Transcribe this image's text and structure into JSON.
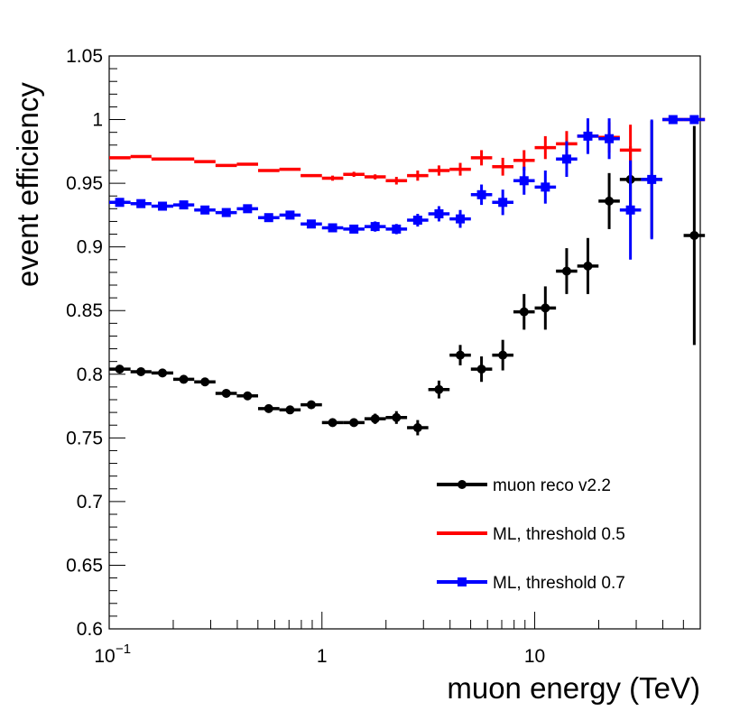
{
  "chart_data": {
    "type": "scatter",
    "title": "",
    "xlabel": "muon energy (TeV)",
    "ylabel": "event efficiency",
    "xscale": "log",
    "xlim": [
      0.1,
      60
    ],
    "ylim": [
      0.6,
      1.05
    ],
    "x_tick_labels": [
      {
        "value": 0.1,
        "base": "10",
        "exp": "−1"
      },
      {
        "value": 1,
        "text": "1"
      },
      {
        "value": 10,
        "text": "10"
      }
    ],
    "y_ticks": [
      0.6,
      0.65,
      0.7,
      0.75,
      0.8,
      0.85,
      0.9,
      0.95,
      1.0,
      1.05
    ],
    "y_tick_labels": [
      "0.6",
      "0.65",
      "0.7",
      "0.75",
      "0.8",
      "0.85",
      "0.9",
      "0.95",
      "1",
      "1.05"
    ],
    "legend_position": "bottom-right",
    "series": [
      {
        "name": "muon reco v2.2",
        "color": "#000000",
        "marker": "circle",
        "points": [
          {
            "x": 0.112,
            "y": 0.804,
            "xlo": 0.1,
            "xhi": 0.126,
            "err": 0.0015
          },
          {
            "x": 0.141,
            "y": 0.802,
            "xlo": 0.126,
            "xhi": 0.158,
            "err": 0.0015
          },
          {
            "x": 0.178,
            "y": 0.801,
            "xlo": 0.158,
            "xhi": 0.2,
            "err": 0.0015
          },
          {
            "x": 0.224,
            "y": 0.796,
            "xlo": 0.2,
            "xhi": 0.251,
            "err": 0.0015
          },
          {
            "x": 0.282,
            "y": 0.794,
            "xlo": 0.251,
            "xhi": 0.316,
            "err": 0.0015
          },
          {
            "x": 0.355,
            "y": 0.785,
            "xlo": 0.316,
            "xhi": 0.398,
            "err": 0.0015
          },
          {
            "x": 0.447,
            "y": 0.783,
            "xlo": 0.398,
            "xhi": 0.501,
            "err": 0.0015
          },
          {
            "x": 0.562,
            "y": 0.773,
            "xlo": 0.501,
            "xhi": 0.631,
            "err": 0.002
          },
          {
            "x": 0.708,
            "y": 0.772,
            "xlo": 0.631,
            "xhi": 0.794,
            "err": 0.002
          },
          {
            "x": 0.891,
            "y": 0.776,
            "xlo": 0.794,
            "xhi": 1.0,
            "err": 0.002
          },
          {
            "x": 1.122,
            "y": 0.762,
            "xlo": 1.0,
            "xhi": 1.259,
            "err": 0.003
          },
          {
            "x": 1.413,
            "y": 0.762,
            "xlo": 1.259,
            "xhi": 1.585,
            "err": 0.003
          },
          {
            "x": 1.778,
            "y": 0.765,
            "xlo": 1.585,
            "xhi": 1.995,
            "err": 0.004
          },
          {
            "x": 2.239,
            "y": 0.766,
            "xlo": 1.995,
            "xhi": 2.512,
            "err": 0.005
          },
          {
            "x": 2.818,
            "y": 0.758,
            "xlo": 2.512,
            "xhi": 3.162,
            "err": 0.006
          },
          {
            "x": 3.548,
            "y": 0.788,
            "xlo": 3.162,
            "xhi": 3.981,
            "err": 0.007
          },
          {
            "x": 4.467,
            "y": 0.815,
            "xlo": 3.981,
            "xhi": 5.012,
            "err": 0.008
          },
          {
            "x": 5.623,
            "y": 0.804,
            "xlo": 5.012,
            "xhi": 6.31,
            "err": 0.01
          },
          {
            "x": 7.079,
            "y": 0.815,
            "xlo": 6.31,
            "xhi": 7.943,
            "err": 0.012
          },
          {
            "x": 8.913,
            "y": 0.849,
            "xlo": 7.943,
            "xhi": 10.0,
            "err": 0.014
          },
          {
            "x": 11.22,
            "y": 0.852,
            "xlo": 10.0,
            "xhi": 12.59,
            "err": 0.017
          },
          {
            "x": 14.13,
            "y": 0.881,
            "xlo": 12.59,
            "xhi": 15.85,
            "err": 0.018
          },
          {
            "x": 17.78,
            "y": 0.885,
            "xlo": 15.85,
            "xhi": 19.95,
            "err": 0.022
          },
          {
            "x": 22.39,
            "y": 0.936,
            "xlo": 19.95,
            "xhi": 25.12,
            "err": 0.022
          },
          {
            "x": 28.18,
            "y": 0.953,
            "xlo": 25.12,
            "xhi": 31.62,
            "err": 0.026
          },
          {
            "x": 35.48,
            "y": 0.953,
            "xlo": 31.62,
            "xhi": 39.81,
            "err": 0.046
          },
          {
            "x": 56.23,
            "y": 0.909,
            "xlo": 50.12,
            "xhi": 63.1,
            "err": 0.086
          }
        ]
      },
      {
        "name": "ML, threshold 0.5",
        "color": "#ff0000",
        "marker": "none",
        "points": [
          {
            "x": 0.112,
            "y": 0.97,
            "xlo": 0.1,
            "xhi": 0.126,
            "err": 0.0
          },
          {
            "x": 0.141,
            "y": 0.971,
            "xlo": 0.126,
            "xhi": 0.158,
            "err": 0.0
          },
          {
            "x": 0.178,
            "y": 0.969,
            "xlo": 0.158,
            "xhi": 0.2,
            "err": 0.0
          },
          {
            "x": 0.224,
            "y": 0.969,
            "xlo": 0.2,
            "xhi": 0.251,
            "err": 0.0
          },
          {
            "x": 0.282,
            "y": 0.967,
            "xlo": 0.251,
            "xhi": 0.316,
            "err": 0.0
          },
          {
            "x": 0.355,
            "y": 0.964,
            "xlo": 0.316,
            "xhi": 0.398,
            "err": 0.0
          },
          {
            "x": 0.447,
            "y": 0.965,
            "xlo": 0.398,
            "xhi": 0.501,
            "err": 0.0
          },
          {
            "x": 0.562,
            "y": 0.96,
            "xlo": 0.501,
            "xhi": 0.631,
            "err": 0.001
          },
          {
            "x": 0.708,
            "y": 0.961,
            "xlo": 0.631,
            "xhi": 0.794,
            "err": 0.001
          },
          {
            "x": 0.891,
            "y": 0.956,
            "xlo": 0.794,
            "xhi": 1.0,
            "err": 0.001
          },
          {
            "x": 1.122,
            "y": 0.954,
            "xlo": 1.0,
            "xhi": 1.259,
            "err": 0.002
          },
          {
            "x": 1.413,
            "y": 0.957,
            "xlo": 1.259,
            "xhi": 1.585,
            "err": 0.002
          },
          {
            "x": 1.778,
            "y": 0.955,
            "xlo": 1.585,
            "xhi": 1.995,
            "err": 0.002
          },
          {
            "x": 2.239,
            "y": 0.952,
            "xlo": 1.995,
            "xhi": 2.512,
            "err": 0.003
          },
          {
            "x": 2.818,
            "y": 0.956,
            "xlo": 2.512,
            "xhi": 3.162,
            "err": 0.004
          },
          {
            "x": 3.548,
            "y": 0.96,
            "xlo": 3.162,
            "xhi": 3.981,
            "err": 0.004
          },
          {
            "x": 4.467,
            "y": 0.961,
            "xlo": 3.981,
            "xhi": 5.012,
            "err": 0.005
          },
          {
            "x": 5.623,
            "y": 0.97,
            "xlo": 5.012,
            "xhi": 6.31,
            "err": 0.006
          },
          {
            "x": 7.079,
            "y": 0.963,
            "xlo": 6.31,
            "xhi": 7.943,
            "err": 0.007
          },
          {
            "x": 8.913,
            "y": 0.968,
            "xlo": 7.943,
            "xhi": 10.0,
            "err": 0.008
          },
          {
            "x": 11.22,
            "y": 0.978,
            "xlo": 10.0,
            "xhi": 12.59,
            "err": 0.009
          },
          {
            "x": 14.13,
            "y": 0.981,
            "xlo": 12.59,
            "xhi": 15.85,
            "err": 0.01
          },
          {
            "x": 17.78,
            "y": 0.987,
            "xlo": 15.85,
            "xhi": 19.95,
            "err": 0.011
          },
          {
            "x": 22.39,
            "y": 0.986,
            "xlo": 19.95,
            "xhi": 25.12,
            "err": 0.012
          },
          {
            "x": 28.18,
            "y": 0.976,
            "xlo": 25.12,
            "xhi": 31.62,
            "err": 0.02
          },
          {
            "x": 44.67,
            "y": 1.0,
            "xlo": 39.81,
            "xhi": 50.12,
            "err": 0.0
          },
          {
            "x": 56.23,
            "y": 1.0,
            "xlo": 50.12,
            "xhi": 63.1,
            "err": 0.0
          }
        ]
      },
      {
        "name": "ML, threshold 0.7",
        "color": "#0000ff",
        "marker": "square",
        "points": [
          {
            "x": 0.112,
            "y": 0.935,
            "xlo": 0.1,
            "xhi": 0.126,
            "err": 0.001
          },
          {
            "x": 0.141,
            "y": 0.934,
            "xlo": 0.126,
            "xhi": 0.158,
            "err": 0.001
          },
          {
            "x": 0.178,
            "y": 0.932,
            "xlo": 0.158,
            "xhi": 0.2,
            "err": 0.001
          },
          {
            "x": 0.224,
            "y": 0.933,
            "xlo": 0.2,
            "xhi": 0.251,
            "err": 0.001
          },
          {
            "x": 0.282,
            "y": 0.929,
            "xlo": 0.251,
            "xhi": 0.316,
            "err": 0.001
          },
          {
            "x": 0.355,
            "y": 0.927,
            "xlo": 0.316,
            "xhi": 0.398,
            "err": 0.001
          },
          {
            "x": 0.447,
            "y": 0.93,
            "xlo": 0.398,
            "xhi": 0.501,
            "err": 0.001
          },
          {
            "x": 0.562,
            "y": 0.923,
            "xlo": 0.501,
            "xhi": 0.631,
            "err": 0.002
          },
          {
            "x": 0.708,
            "y": 0.925,
            "xlo": 0.631,
            "xhi": 0.794,
            "err": 0.002
          },
          {
            "x": 0.891,
            "y": 0.918,
            "xlo": 0.794,
            "xhi": 1.0,
            "err": 0.002
          },
          {
            "x": 1.122,
            "y": 0.915,
            "xlo": 1.0,
            "xhi": 1.259,
            "err": 0.003
          },
          {
            "x": 1.413,
            "y": 0.914,
            "xlo": 1.259,
            "xhi": 1.585,
            "err": 0.003
          },
          {
            "x": 1.778,
            "y": 0.916,
            "xlo": 1.585,
            "xhi": 1.995,
            "err": 0.004
          },
          {
            "x": 2.239,
            "y": 0.914,
            "xlo": 1.995,
            "xhi": 2.512,
            "err": 0.004
          },
          {
            "x": 2.818,
            "y": 0.921,
            "xlo": 2.512,
            "xhi": 3.162,
            "err": 0.005
          },
          {
            "x": 3.548,
            "y": 0.926,
            "xlo": 3.162,
            "xhi": 3.981,
            "err": 0.006
          },
          {
            "x": 4.467,
            "y": 0.922,
            "xlo": 3.981,
            "xhi": 5.012,
            "err": 0.007
          },
          {
            "x": 5.623,
            "y": 0.941,
            "xlo": 5.012,
            "xhi": 6.31,
            "err": 0.008
          },
          {
            "x": 7.079,
            "y": 0.935,
            "xlo": 6.31,
            "xhi": 7.943,
            "err": 0.01
          },
          {
            "x": 8.913,
            "y": 0.952,
            "xlo": 7.943,
            "xhi": 10.0,
            "err": 0.011
          },
          {
            "x": 11.22,
            "y": 0.947,
            "xlo": 10.0,
            "xhi": 12.59,
            "err": 0.013
          },
          {
            "x": 14.13,
            "y": 0.969,
            "xlo": 12.59,
            "xhi": 15.85,
            "err": 0.014
          },
          {
            "x": 17.78,
            "y": 0.987,
            "xlo": 15.85,
            "xhi": 19.95,
            "err": 0.014
          },
          {
            "x": 22.39,
            "y": 0.985,
            "xlo": 19.95,
            "xhi": 25.12,
            "err": 0.016
          },
          {
            "x": 28.18,
            "y": 0.929,
            "xlo": 25.12,
            "xhi": 31.62,
            "err": 0.039
          },
          {
            "x": 35.48,
            "y": 0.953,
            "xlo": 31.62,
            "xhi": 39.81,
            "err": 0.047
          },
          {
            "x": 44.67,
            "y": 1.0,
            "xlo": 39.81,
            "xhi": 50.12,
            "err": 0.0
          },
          {
            "x": 56.23,
            "y": 1.0,
            "xlo": 50.12,
            "xhi": 63.1,
            "err": 0.0
          }
        ]
      }
    ]
  }
}
